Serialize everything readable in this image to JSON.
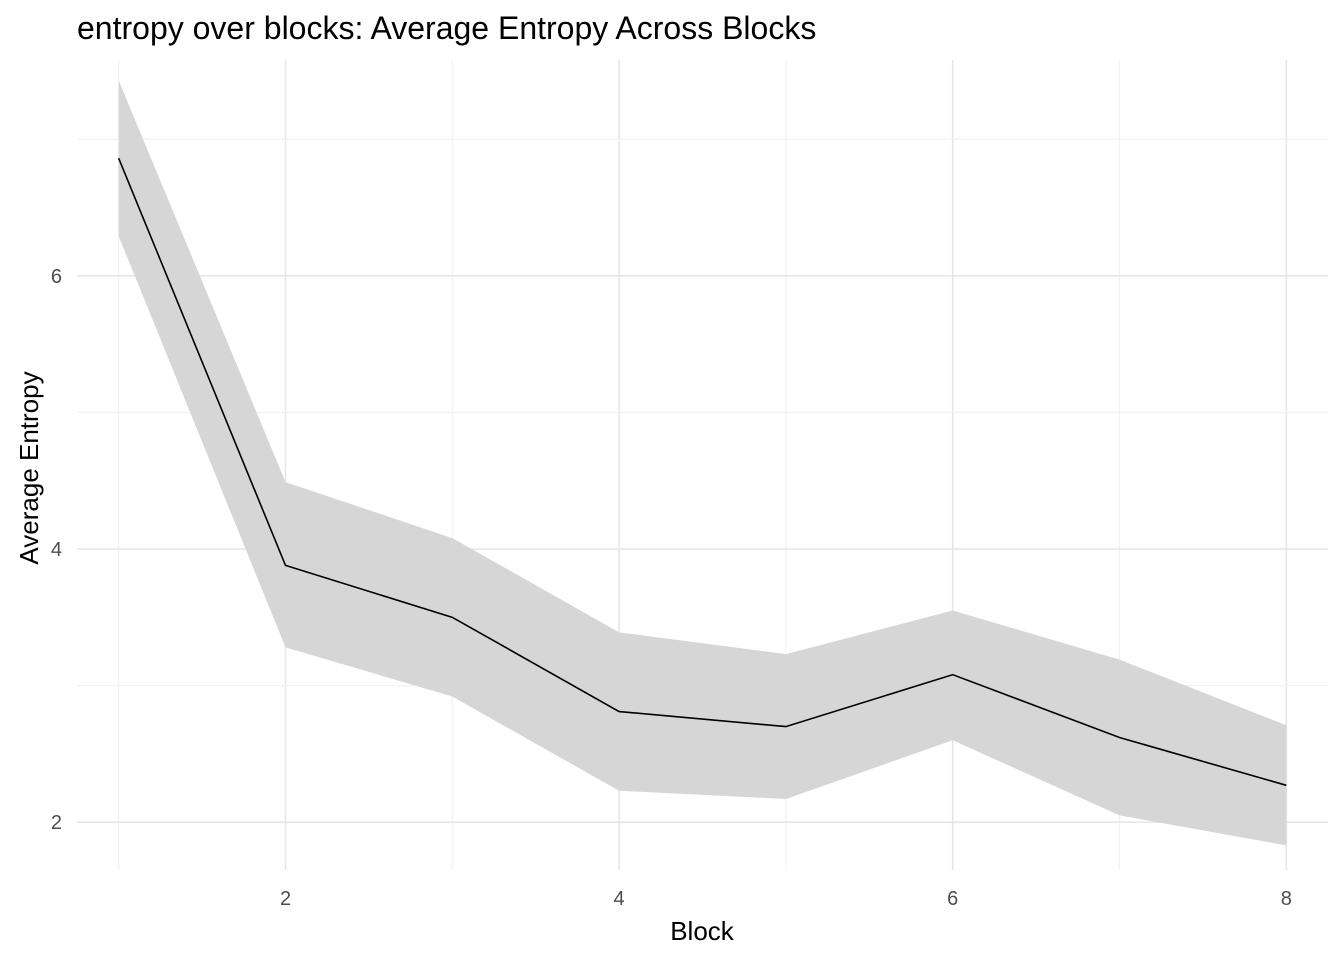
{
  "chart_data": {
    "type": "line",
    "title": "entropy over blocks: Average Entropy Across Blocks",
    "xlabel": "Block",
    "ylabel": "Average Entropy",
    "x": [
      1,
      2,
      3,
      4,
      5,
      6,
      7,
      8
    ],
    "series": [
      {
        "values": [
          6.86,
          3.88,
          3.5,
          2.81,
          2.7,
          3.08,
          2.62,
          2.27
        ],
        "lower": [
          6.29,
          3.28,
          2.92,
          2.23,
          2.17,
          2.6,
          2.05,
          1.83
        ],
        "upper": [
          7.43,
          4.49,
          4.08,
          3.39,
          3.23,
          3.55,
          3.19,
          2.71
        ],
        "color": "#000000",
        "band_color": "#d6d6d6"
      }
    ],
    "xlim": [
      0.75,
      8.25
    ],
    "ylim": [
      1.65,
      7.58
    ],
    "xticks": [
      2,
      4,
      6,
      8
    ],
    "yticks": [
      2,
      4,
      6
    ],
    "grid": true
  }
}
